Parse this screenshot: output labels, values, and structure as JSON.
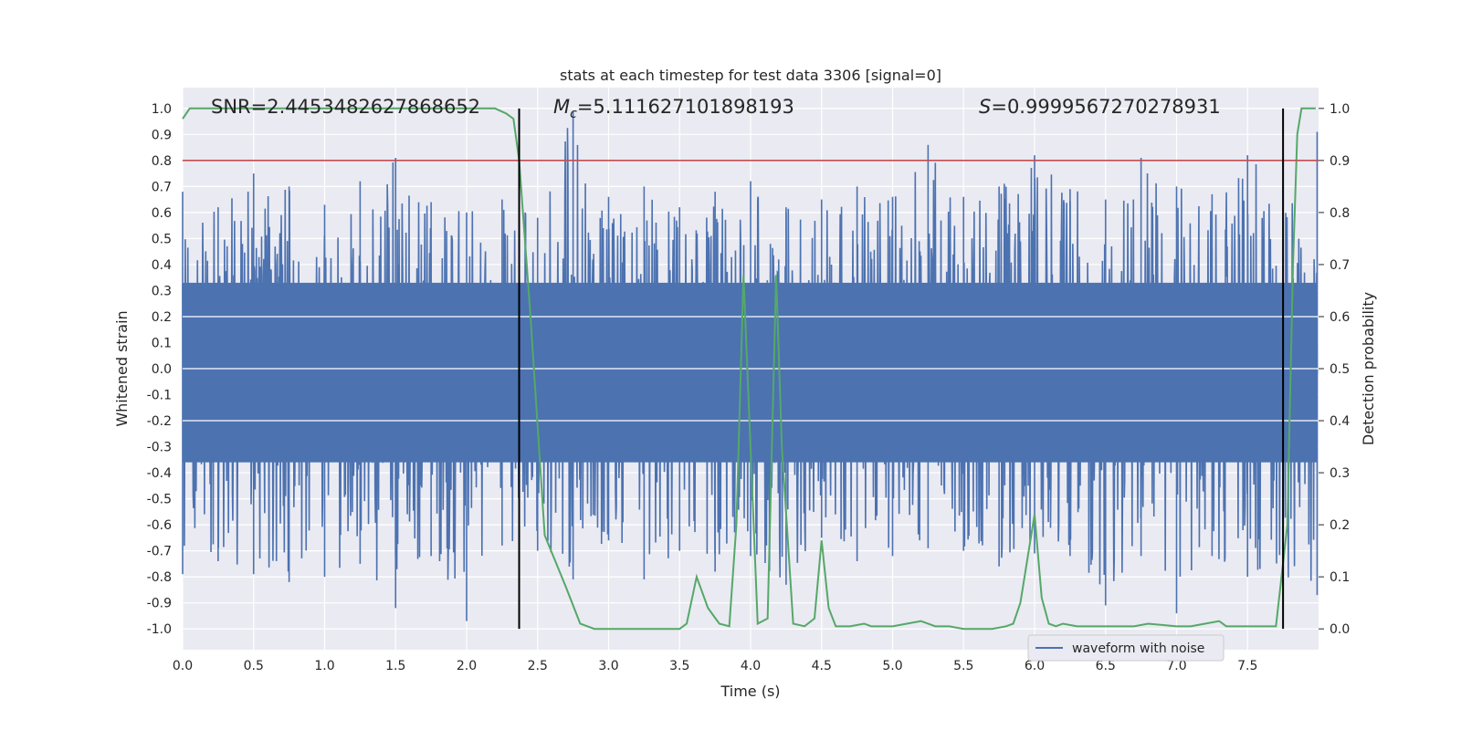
{
  "chart_data": {
    "type": "line",
    "title": "stats at each timestep for test data 3306 [signal=0]",
    "xlabel": "Time (s)",
    "ylabel": "Whitened strain",
    "y2label": "Detection probability",
    "xlim": [
      0,
      8.0
    ],
    "ylim": [
      -1.08,
      1.08
    ],
    "y2lim": [
      -0.04,
      1.04
    ],
    "xticks": [
      "0.0",
      "0.5",
      "1.0",
      "1.5",
      "2.0",
      "2.5",
      "3.0",
      "3.5",
      "4.0",
      "4.5",
      "5.0",
      "5.5",
      "6.0",
      "6.5",
      "7.0",
      "7.5"
    ],
    "yticks": [
      "1.0",
      "0.9",
      "0.8",
      "0.7",
      "0.6",
      "0.5",
      "0.4",
      "0.3",
      "0.2",
      "0.1",
      "0.0",
      "-0.1",
      "-0.2",
      "-0.3",
      "-0.4",
      "-0.5",
      "-0.6",
      "-0.7",
      "-0.8",
      "-0.9",
      "-1.0"
    ],
    "y2ticks": [
      "1.0",
      "0.9",
      "0.8",
      "0.7",
      "0.6",
      "0.5",
      "0.4",
      "0.3",
      "0.2",
      "0.1",
      "0.0"
    ],
    "annotations": {
      "snr": "SNR=2.4453482627868652",
      "mc_symbol": "M",
      "mc_sub": "c",
      "mc_value": "=5.111627101898193",
      "s_symbol": "S",
      "s_value": "=0.9999567270278931"
    },
    "threshold": 0.8,
    "vlines": [
      2.37,
      7.75
    ],
    "legend": {
      "label": "waveform with noise",
      "placement": "lower-right"
    },
    "series": [
      {
        "name": "waveform with noise",
        "color": "#4c72b0",
        "axis": "left",
        "envelope": {
          "x": [
            0.0,
            0.25,
            0.5,
            0.75,
            1.0,
            1.25,
            1.5,
            1.75,
            2.0,
            2.25,
            2.5,
            2.75,
            3.0,
            3.25,
            3.5,
            3.75,
            4.0,
            4.25,
            4.5,
            4.75,
            5.0,
            5.25,
            5.5,
            5.75,
            6.0,
            6.25,
            6.5,
            6.75,
            7.0,
            7.25,
            7.5,
            7.75,
            7.99
          ],
          "upper": [
            0.68,
            0.62,
            0.75,
            0.7,
            0.63,
            0.72,
            0.81,
            0.64,
            0.6,
            0.65,
            0.58,
            0.99,
            0.66,
            0.7,
            0.62,
            0.68,
            0.72,
            0.62,
            0.65,
            0.7,
            0.66,
            0.86,
            0.66,
            0.7,
            0.82,
            0.69,
            0.65,
            0.81,
            0.7,
            0.67,
            0.82,
            0.7,
            0.91
          ],
          "lower": [
            -0.79,
            -0.74,
            -0.79,
            -0.82,
            -0.8,
            -0.75,
            -0.92,
            -0.72,
            -0.97,
            -0.68,
            -0.7,
            -0.81,
            -0.66,
            -0.81,
            -0.7,
            -0.78,
            -0.72,
            -0.83,
            -0.65,
            -0.74,
            -0.72,
            -0.69,
            -0.7,
            -0.76,
            -0.71,
            -0.72,
            -0.91,
            -0.72,
            -0.94,
            -0.72,
            -0.8,
            -0.84,
            -0.87
          ]
        }
      },
      {
        "name": "detection probability",
        "color": "#55a868",
        "axis": "right",
        "x": [
          0.0,
          0.05,
          0.1,
          0.5,
          1.0,
          1.5,
          2.0,
          2.2,
          2.28,
          2.33,
          2.37,
          2.45,
          2.55,
          2.7,
          2.8,
          2.9,
          3.0,
          3.1,
          3.2,
          3.5,
          3.55,
          3.62,
          3.7,
          3.78,
          3.85,
          3.9,
          3.95,
          4.05,
          4.12,
          4.18,
          4.22,
          4.3,
          4.38,
          4.45,
          4.5,
          4.55,
          4.6,
          4.7,
          4.8,
          4.85,
          4.9,
          5.0,
          5.1,
          5.2,
          5.3,
          5.4,
          5.5,
          5.7,
          5.8,
          5.85,
          5.9,
          6.0,
          6.05,
          6.1,
          6.15,
          6.2,
          6.3,
          6.4,
          6.5,
          6.6,
          6.7,
          6.8,
          7.0,
          7.1,
          7.2,
          7.3,
          7.35,
          7.45,
          7.6,
          7.7,
          7.78,
          7.82,
          7.85,
          7.88,
          7.93,
          7.98
        ],
        "y": [
          0.98,
          1.0,
          1.0,
          1.0,
          1.0,
          1.0,
          1.0,
          1.0,
          0.99,
          0.98,
          0.9,
          0.6,
          0.18,
          0.08,
          0.01,
          0.0,
          0.0,
          0.0,
          0.0,
          0.0,
          0.01,
          0.1,
          0.04,
          0.01,
          0.005,
          0.2,
          0.68,
          0.01,
          0.02,
          0.68,
          0.35,
          0.01,
          0.005,
          0.02,
          0.17,
          0.04,
          0.005,
          0.005,
          0.01,
          0.005,
          0.005,
          0.005,
          0.01,
          0.015,
          0.005,
          0.005,
          0.0,
          0.0,
          0.005,
          0.01,
          0.05,
          0.22,
          0.06,
          0.01,
          0.005,
          0.01,
          0.005,
          0.005,
          0.005,
          0.005,
          0.005,
          0.01,
          0.005,
          0.005,
          0.01,
          0.015,
          0.005,
          0.005,
          0.005,
          0.005,
          0.2,
          0.7,
          0.95,
          1.0,
          1.0,
          1.0
        ]
      }
    ]
  }
}
